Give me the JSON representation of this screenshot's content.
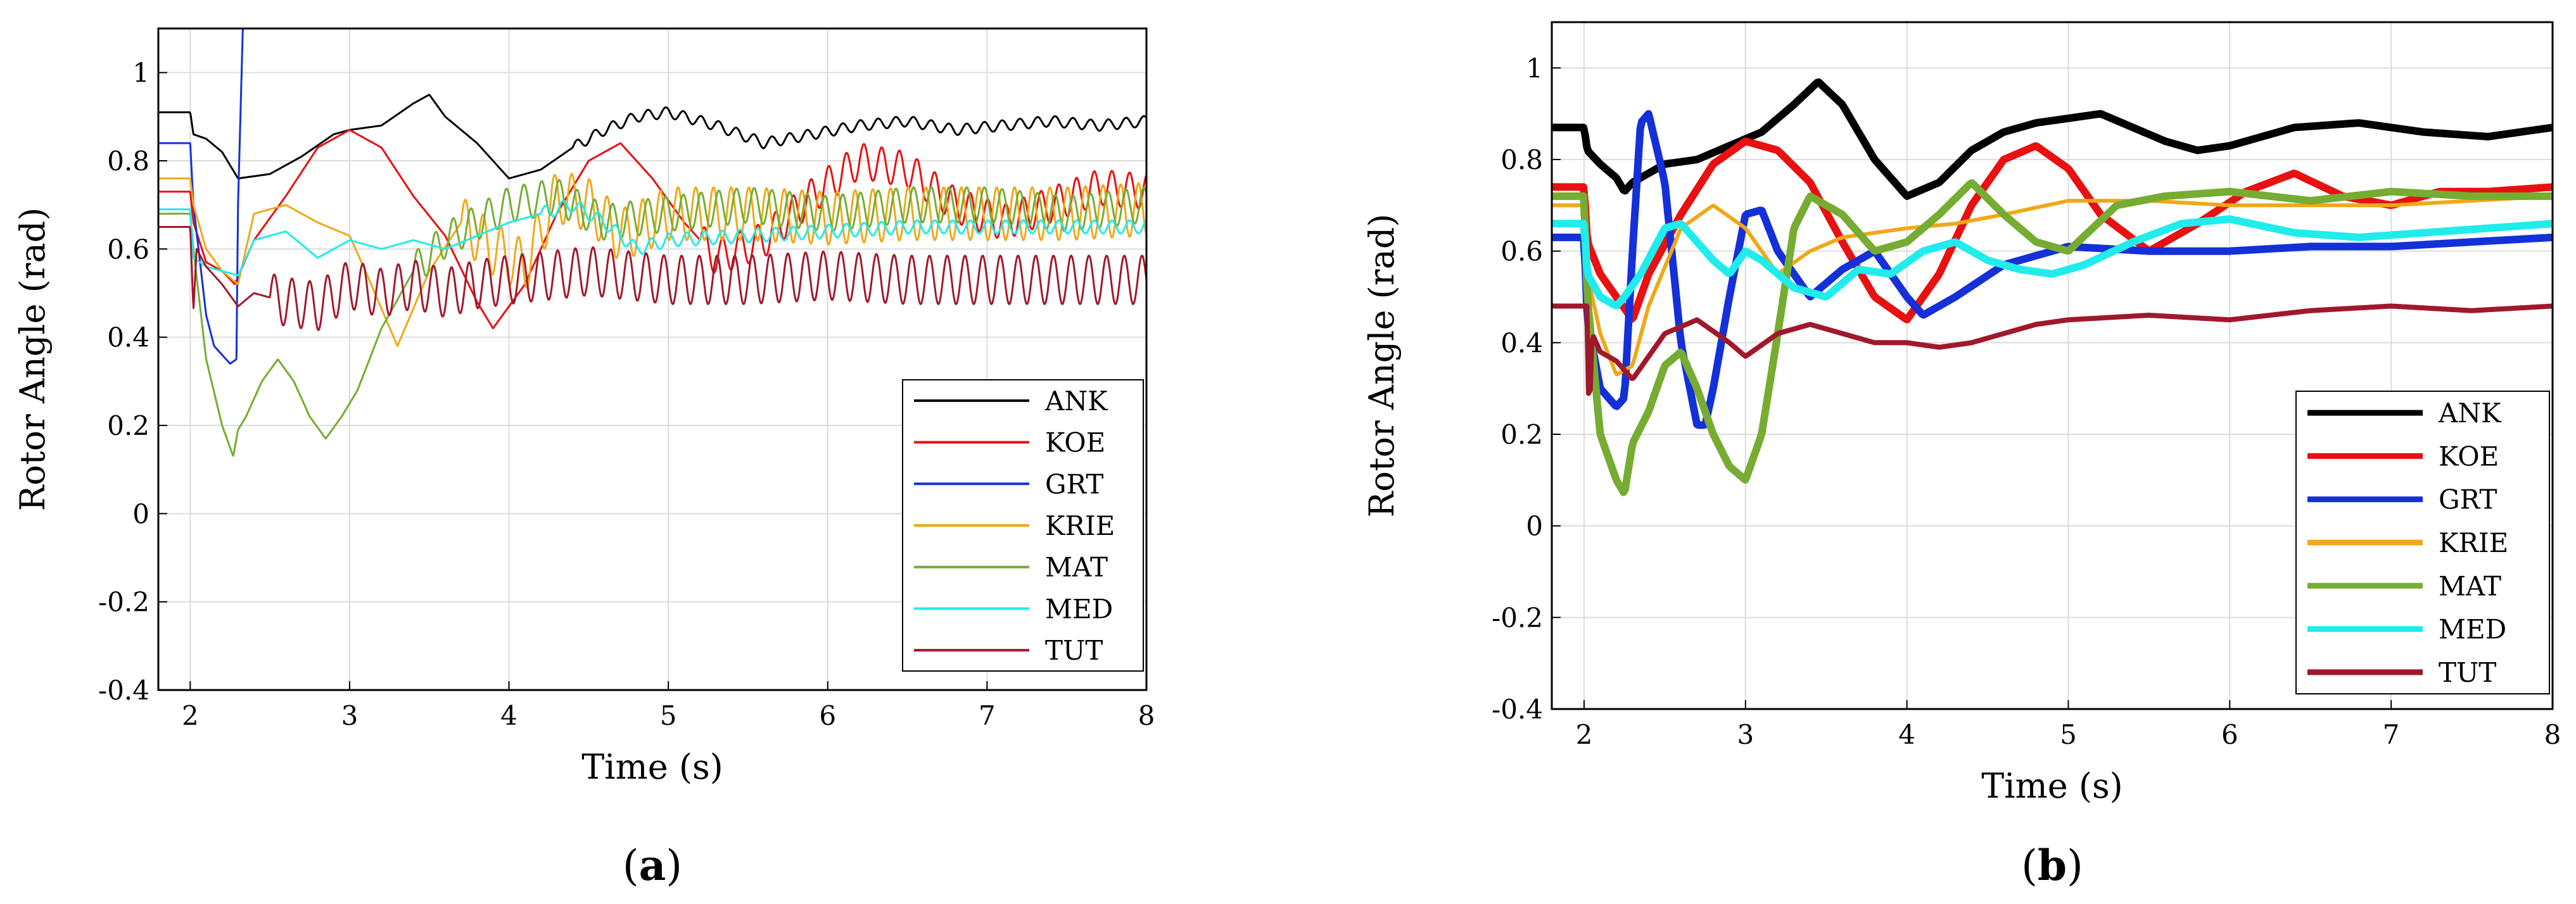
{
  "colors": {
    "ANK": "#000000",
    "KOE": "#e81010",
    "GRT": "#1430d8",
    "KRIE": "#f0a818",
    "MAT": "#76ac32",
    "MED": "#20ecec",
    "TUT": "#a0182c",
    "grid": "#dcdcdc"
  },
  "chart_data": [
    {
      "panel_label": "(a)",
      "caption_letter": "a",
      "type": "line",
      "xlabel": "Time (s)",
      "ylabel": "Rotor Angle (rad)",
      "xlim": [
        1.8,
        8
      ],
      "ylim": [
        -0.4,
        1.1
      ],
      "xticks": [
        2,
        3,
        4,
        5,
        6,
        7,
        8
      ],
      "yticks": [
        -0.4,
        -0.2,
        0,
        0.2,
        0.4,
        0.6,
        0.8,
        1
      ],
      "grid": true,
      "legend_position": "bottom-right",
      "series": [
        {
          "name": "ANK",
          "x": [
            1.8,
            2.0,
            2.02,
            2.1,
            2.2,
            2.3,
            2.5,
            2.7,
            2.9,
            3.0,
            3.2,
            3.4,
            3.5,
            3.6,
            3.8,
            4.0,
            4.2,
            4.4,
            4.6,
            4.8,
            5.0,
            5.3,
            5.6,
            5.9,
            6.2,
            6.5,
            6.8,
            7.1,
            7.4,
            7.7,
            8.0
          ],
          "y": [
            0.91,
            0.91,
            0.86,
            0.85,
            0.82,
            0.76,
            0.77,
            0.81,
            0.86,
            0.87,
            0.88,
            0.93,
            0.95,
            0.9,
            0.84,
            0.76,
            0.78,
            0.83,
            0.87,
            0.9,
            0.91,
            0.88,
            0.84,
            0.86,
            0.88,
            0.89,
            0.87,
            0.88,
            0.89,
            0.88,
            0.89
          ],
          "osc_amp": 0.012,
          "osc_freq": 9,
          "osc_start": 4.4
        },
        {
          "name": "KOE",
          "x": [
            1.8,
            2.0,
            2.02,
            2.1,
            2.2,
            2.28,
            2.4,
            2.6,
            2.8,
            3.0,
            3.2,
            3.4,
            3.6,
            3.8,
            3.9,
            4.1,
            4.3,
            4.5,
            4.7,
            4.9,
            5.1,
            5.3,
            5.6,
            5.9,
            6.2,
            6.5,
            6.8,
            7.1,
            7.4,
            7.7,
            8.0
          ],
          "y": [
            0.73,
            0.73,
            0.66,
            0.57,
            0.55,
            0.52,
            0.62,
            0.72,
            0.83,
            0.87,
            0.83,
            0.72,
            0.63,
            0.48,
            0.42,
            0.52,
            0.68,
            0.8,
            0.84,
            0.76,
            0.66,
            0.58,
            0.62,
            0.72,
            0.8,
            0.78,
            0.7,
            0.66,
            0.7,
            0.74,
            0.73
          ],
          "osc_amp": 0.04,
          "osc_freq": 9,
          "osc_start": 5.2
        },
        {
          "name": "GRT",
          "x": [
            1.8,
            2.0,
            2.02,
            2.1,
            2.15,
            2.2,
            2.25,
            2.29,
            2.3,
            2.33
          ],
          "y": [
            0.84,
            0.84,
            0.7,
            0.45,
            0.38,
            0.36,
            0.34,
            0.35,
            0.7,
            1.1
          ],
          "osc_amp": 0.0,
          "osc_freq": 0,
          "osc_start": 9
        },
        {
          "name": "KRIE",
          "x": [
            1.8,
            2.0,
            2.02,
            2.1,
            2.2,
            2.3,
            2.4,
            2.6,
            2.8,
            3.0,
            3.1,
            3.3,
            3.5,
            3.7,
            3.9,
            4.1,
            4.3,
            4.5,
            4.7,
            5.0,
            5.5,
            6.0,
            6.5,
            7.0,
            7.5,
            8.0
          ],
          "y": [
            0.76,
            0.76,
            0.7,
            0.6,
            0.55,
            0.52,
            0.68,
            0.7,
            0.66,
            0.63,
            0.55,
            0.38,
            0.55,
            0.66,
            0.6,
            0.56,
            0.72,
            0.7,
            0.63,
            0.68,
            0.68,
            0.67,
            0.68,
            0.68,
            0.68,
            0.69
          ],
          "osc_amp": 0.06,
          "osc_freq": 9,
          "osc_start": 3.7
        },
        {
          "name": "MAT",
          "x": [
            1.8,
            2.0,
            2.02,
            2.1,
            2.2,
            2.25,
            2.27,
            2.3,
            2.35,
            2.45,
            2.55,
            2.65,
            2.75,
            2.85,
            2.95,
            3.05,
            3.2,
            3.4,
            3.6,
            3.8,
            4.0,
            4.3,
            4.6,
            5.0,
            5.5,
            6.0,
            6.5,
            7.0,
            7.5,
            8.0
          ],
          "y": [
            0.68,
            0.68,
            0.6,
            0.35,
            0.2,
            0.15,
            0.13,
            0.19,
            0.22,
            0.3,
            0.35,
            0.3,
            0.22,
            0.17,
            0.22,
            0.28,
            0.42,
            0.55,
            0.62,
            0.66,
            0.7,
            0.72,
            0.66,
            0.68,
            0.7,
            0.68,
            0.7,
            0.7,
            0.68,
            0.7
          ],
          "osc_amp": 0.04,
          "osc_freq": 9,
          "osc_start": 3.4
        },
        {
          "name": "MED",
          "x": [
            1.8,
            2.0,
            2.02,
            2.1,
            2.2,
            2.3,
            2.4,
            2.6,
            2.8,
            3.0,
            3.2,
            3.4,
            3.6,
            3.8,
            4.0,
            4.2,
            4.4,
            4.6,
            4.8,
            5.0,
            5.5,
            6.0,
            6.5,
            7.0,
            7.5,
            8.0
          ],
          "y": [
            0.69,
            0.69,
            0.58,
            0.56,
            0.55,
            0.54,
            0.62,
            0.64,
            0.58,
            0.62,
            0.6,
            0.62,
            0.6,
            0.63,
            0.66,
            0.68,
            0.7,
            0.66,
            0.6,
            0.62,
            0.63,
            0.64,
            0.65,
            0.65,
            0.65,
            0.65
          ],
          "osc_amp": 0.015,
          "osc_freq": 9,
          "osc_start": 4.2
        },
        {
          "name": "TUT",
          "x": [
            1.8,
            2.0,
            2.02,
            2.04,
            2.1,
            2.2,
            2.3,
            2.4,
            2.6,
            2.8,
            3.0,
            3.2,
            3.4,
            3.6,
            3.8,
            4.0,
            4.5,
            5.0,
            5.5,
            6.0,
            6.5,
            7.0,
            7.5,
            8.0
          ],
          "y": [
            0.65,
            0.65,
            0.46,
            0.6,
            0.56,
            0.52,
            0.47,
            0.5,
            0.48,
            0.47,
            0.52,
            0.5,
            0.52,
            0.5,
            0.52,
            0.53,
            0.55,
            0.53,
            0.53,
            0.54,
            0.53,
            0.53,
            0.53,
            0.53
          ],
          "osc_amp": 0.055,
          "osc_freq": 9,
          "osc_start": 2.5
        }
      ]
    },
    {
      "panel_label": "(b)",
      "caption_letter": "b",
      "type": "line",
      "xlabel": "Time (s)",
      "ylabel": "Rotor Angle (rad)",
      "xlim": [
        1.8,
        8
      ],
      "ylim": [
        -0.4,
        1.1
      ],
      "xticks": [
        2,
        3,
        4,
        5,
        6,
        7,
        8
      ],
      "yticks": [
        -0.4,
        -0.2,
        0,
        0.2,
        0.4,
        0.6,
        0.8,
        1
      ],
      "grid": true,
      "legend_position": "bottom-right",
      "series": [
        {
          "name": "ANK",
          "x": [
            1.8,
            2.0,
            2.02,
            2.1,
            2.2,
            2.25,
            2.3,
            2.5,
            2.7,
            2.9,
            3.1,
            3.3,
            3.45,
            3.6,
            3.8,
            4.0,
            4.2,
            4.4,
            4.6,
            4.8,
            5.0,
            5.2,
            5.4,
            5.6,
            5.8,
            6.0,
            6.4,
            6.8,
            7.2,
            7.6,
            8.0
          ],
          "y": [
            0.87,
            0.87,
            0.82,
            0.79,
            0.76,
            0.73,
            0.75,
            0.79,
            0.8,
            0.83,
            0.86,
            0.92,
            0.97,
            0.92,
            0.8,
            0.72,
            0.75,
            0.82,
            0.86,
            0.88,
            0.89,
            0.9,
            0.87,
            0.84,
            0.82,
            0.83,
            0.87,
            0.88,
            0.86,
            0.85,
            0.87
          ],
          "width": 12
        },
        {
          "name": "KOE",
          "x": [
            1.8,
            2.0,
            2.02,
            2.1,
            2.2,
            2.3,
            2.4,
            2.6,
            2.8,
            3.0,
            3.2,
            3.4,
            3.6,
            3.8,
            4.0,
            4.2,
            4.4,
            4.6,
            4.8,
            5.0,
            5.2,
            5.5,
            5.8,
            6.1,
            6.4,
            6.7,
            7.0,
            7.3,
            7.6,
            8.0
          ],
          "y": [
            0.74,
            0.74,
            0.62,
            0.55,
            0.5,
            0.45,
            0.55,
            0.68,
            0.79,
            0.84,
            0.82,
            0.75,
            0.62,
            0.5,
            0.45,
            0.55,
            0.7,
            0.8,
            0.83,
            0.78,
            0.68,
            0.6,
            0.66,
            0.73,
            0.77,
            0.72,
            0.7,
            0.73,
            0.73,
            0.74
          ],
          "width": 12
        },
        {
          "name": "GRT",
          "x": [
            1.8,
            2.0,
            2.02,
            2.1,
            2.2,
            2.25,
            2.3,
            2.35,
            2.4,
            2.5,
            2.6,
            2.7,
            2.75,
            2.8,
            2.9,
            3.0,
            3.1,
            3.2,
            3.4,
            3.6,
            3.8,
            4.0,
            4.1,
            4.3,
            4.6,
            5.0,
            5.5,
            6.0,
            6.5,
            7.0,
            7.5,
            8.0
          ],
          "y": [
            0.63,
            0.63,
            0.45,
            0.3,
            0.26,
            0.28,
            0.6,
            0.88,
            0.9,
            0.75,
            0.4,
            0.22,
            0.22,
            0.3,
            0.5,
            0.68,
            0.69,
            0.6,
            0.5,
            0.56,
            0.6,
            0.5,
            0.46,
            0.5,
            0.57,
            0.61,
            0.6,
            0.6,
            0.61,
            0.61,
            0.62,
            0.63
          ],
          "width": 12
        },
        {
          "name": "KRIE",
          "x": [
            1.8,
            2.0,
            2.02,
            2.1,
            2.2,
            2.3,
            2.4,
            2.6,
            2.8,
            3.0,
            3.2,
            3.4,
            3.6,
            3.8,
            4.0,
            4.3,
            4.6,
            5.0,
            5.5,
            6.0,
            6.5,
            7.0,
            7.5,
            8.0
          ],
          "y": [
            0.7,
            0.7,
            0.55,
            0.42,
            0.33,
            0.35,
            0.48,
            0.65,
            0.7,
            0.65,
            0.55,
            0.6,
            0.63,
            0.64,
            0.65,
            0.66,
            0.68,
            0.71,
            0.71,
            0.7,
            0.7,
            0.7,
            0.71,
            0.72
          ],
          "width": 6
        },
        {
          "name": "MAT",
          "x": [
            1.8,
            2.0,
            2.02,
            2.1,
            2.2,
            2.25,
            2.3,
            2.4,
            2.5,
            2.6,
            2.7,
            2.8,
            2.9,
            3.0,
            3.1,
            3.2,
            3.3,
            3.4,
            3.6,
            3.8,
            4.0,
            4.2,
            4.4,
            4.6,
            4.8,
            5.0,
            5.3,
            5.6,
            6.0,
            6.5,
            7.0,
            7.5,
            8.0
          ],
          "y": [
            0.72,
            0.72,
            0.5,
            0.2,
            0.1,
            0.07,
            0.18,
            0.25,
            0.35,
            0.38,
            0.3,
            0.2,
            0.13,
            0.1,
            0.2,
            0.42,
            0.65,
            0.72,
            0.68,
            0.6,
            0.62,
            0.68,
            0.75,
            0.68,
            0.62,
            0.6,
            0.7,
            0.72,
            0.73,
            0.71,
            0.73,
            0.72,
            0.72
          ],
          "width": 12
        },
        {
          "name": "MED",
          "x": [
            1.8,
            2.0,
            2.02,
            2.1,
            2.2,
            2.25,
            2.35,
            2.5,
            2.6,
            2.7,
            2.8,
            2.9,
            3.0,
            3.1,
            3.3,
            3.5,
            3.7,
            3.9,
            4.1,
            4.3,
            4.5,
            4.7,
            4.9,
            5.1,
            5.4,
            5.7,
            6.0,
            6.4,
            6.8,
            7.2,
            7.6,
            8.0
          ],
          "y": [
            0.66,
            0.66,
            0.55,
            0.5,
            0.48,
            0.5,
            0.55,
            0.65,
            0.66,
            0.62,
            0.58,
            0.55,
            0.6,
            0.58,
            0.52,
            0.5,
            0.56,
            0.55,
            0.6,
            0.62,
            0.58,
            0.56,
            0.55,
            0.57,
            0.62,
            0.66,
            0.67,
            0.64,
            0.63,
            0.64,
            0.65,
            0.66
          ],
          "width": 12
        },
        {
          "name": "TUT",
          "x": [
            1.8,
            2.0,
            2.02,
            2.03,
            2.05,
            2.1,
            2.2,
            2.3,
            2.5,
            2.7,
            2.9,
            3.0,
            3.2,
            3.4,
            3.6,
            3.8,
            4.0,
            4.2,
            4.4,
            4.6,
            4.8,
            5.0,
            5.5,
            6.0,
            6.5,
            7.0,
            7.5,
            8.0
          ],
          "y": [
            0.48,
            0.48,
            0.48,
            0.22,
            0.42,
            0.38,
            0.36,
            0.32,
            0.42,
            0.45,
            0.4,
            0.37,
            0.42,
            0.44,
            0.42,
            0.4,
            0.4,
            0.39,
            0.4,
            0.42,
            0.44,
            0.45,
            0.46,
            0.45,
            0.47,
            0.48,
            0.47,
            0.48
          ],
          "width": 8
        }
      ]
    }
  ]
}
